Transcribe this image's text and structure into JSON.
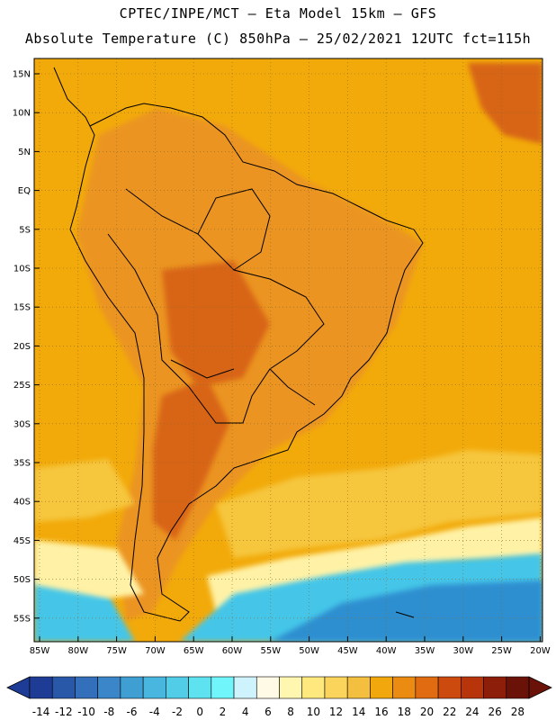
{
  "title_line1": "CPTEC/INPE/MCT –  Eta Model 15km – GFS",
  "title_line2": "Absolute Temperature (C) 850hPa – 25/02/2021 12UTC fct=115h",
  "lat_labels": [
    "15N",
    "10N",
    "5N",
    "EQ",
    "5S",
    "10S",
    "15S",
    "20S",
    "25S",
    "30S",
    "35S",
    "40S",
    "45S",
    "50S",
    "55S"
  ],
  "lon_labels": [
    "85W",
    "80W",
    "75W",
    "70W",
    "65W",
    "60W",
    "55W",
    "50W",
    "45W",
    "40W",
    "35W",
    "30W",
    "25W",
    "20W"
  ],
  "colorbar": {
    "labels": [
      "-14",
      "-12",
      "-10",
      "-8",
      "-6",
      "-4",
      "-2",
      "0",
      "2",
      "4",
      "6",
      "8",
      "10",
      "12",
      "14",
      "16",
      "18",
      "20",
      "22",
      "24",
      "26",
      "28"
    ],
    "colors": [
      "#1e3c96",
      "#2a58a8",
      "#336fba",
      "#3a86c8",
      "#3f9fd2",
      "#48b6de",
      "#52cde8",
      "#5fe2f0",
      "#70f6fa",
      "#cff3fc",
      "#fffae6",
      "#fff7b0",
      "#ffe97e",
      "#fbd45c",
      "#f4be3e",
      "#f2a80c",
      "#eb8b12",
      "#e06b10",
      "#cc4a0e",
      "#b8350c",
      "#8c1e0a",
      "#6b1208"
    ]
  },
  "colors": {
    "ocean_base": "#f2aa0a",
    "land_base": "#eb9420",
    "hot_core": "#d86512",
    "warm_band": "#f6c63e",
    "cool_band": "#fff2a6",
    "cold_water": "#44c6e8",
    "deep_cold": "#2f8fd0"
  }
}
